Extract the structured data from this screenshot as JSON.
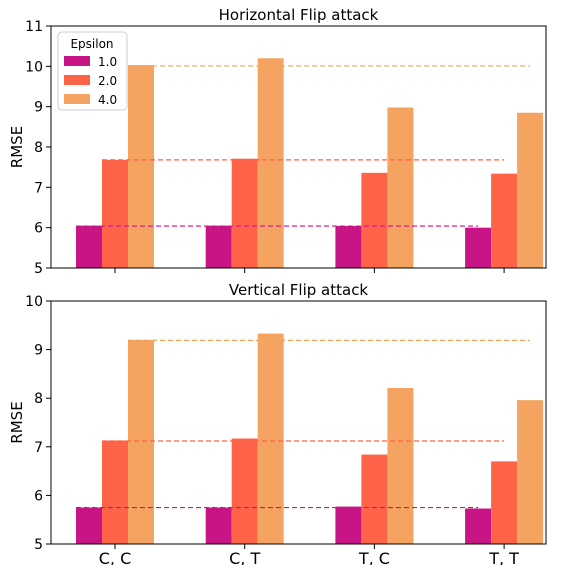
{
  "chart_data": [
    {
      "type": "bar",
      "title": "Horizontal Flip attack",
      "ylabel": "RMSE",
      "xlabel": "",
      "categories": [
        "C, C",
        "C, T",
        "T, C",
        "T, T"
      ],
      "ylim": [
        5,
        11
      ],
      "yticks": [
        5,
        6,
        7,
        8,
        9,
        10,
        11
      ],
      "show_xtick_labels": false,
      "legend": {
        "title": "Epsilon",
        "position": "top-left"
      },
      "series": [
        {
          "name": "1.0",
          "color": "#c71585",
          "values": [
            6.05,
            6.05,
            6.04,
            6.0
          ]
        },
        {
          "name": "2.0",
          "color": "#ff6347",
          "values": [
            7.68,
            7.71,
            7.36,
            7.34
          ]
        },
        {
          "name": "4.0",
          "color": "#f4a460",
          "values": [
            10.03,
            10.2,
            8.98,
            8.85
          ]
        }
      ],
      "reference_lines": [
        {
          "series": "1.0",
          "value": 6.04,
          "color": "#c71585"
        },
        {
          "series": "2.0",
          "value": 7.68,
          "color": "#ff6347"
        },
        {
          "series": "4.0",
          "value": 10.01,
          "color": "#f4a460"
        }
      ]
    },
    {
      "type": "bar",
      "title": "Vertical Flip attack",
      "ylabel": "RMSE",
      "xlabel": "",
      "categories": [
        "C, C",
        "C, T",
        "T, C",
        "T, T"
      ],
      "ylim": [
        5,
        10
      ],
      "yticks": [
        5,
        6,
        7,
        8,
        9,
        10
      ],
      "show_xtick_labels": true,
      "series": [
        {
          "name": "1.0",
          "color": "#c71585",
          "values": [
            5.75,
            5.75,
            5.77,
            5.73
          ]
        },
        {
          "name": "2.0",
          "color": "#ff6347",
          "values": [
            7.13,
            7.17,
            6.84,
            6.7
          ]
        },
        {
          "name": "4.0",
          "color": "#f4a460",
          "values": [
            9.2,
            9.33,
            8.21,
            7.96
          ]
        }
      ],
      "reference_lines": [
        {
          "series": "1.0",
          "value": 5.75,
          "color": "#c71585"
        },
        {
          "series": "2.0",
          "value": 7.12,
          "color": "#ff6347"
        },
        {
          "series": "4.0",
          "value": 9.19,
          "color": "#f4a460"
        }
      ]
    }
  ]
}
